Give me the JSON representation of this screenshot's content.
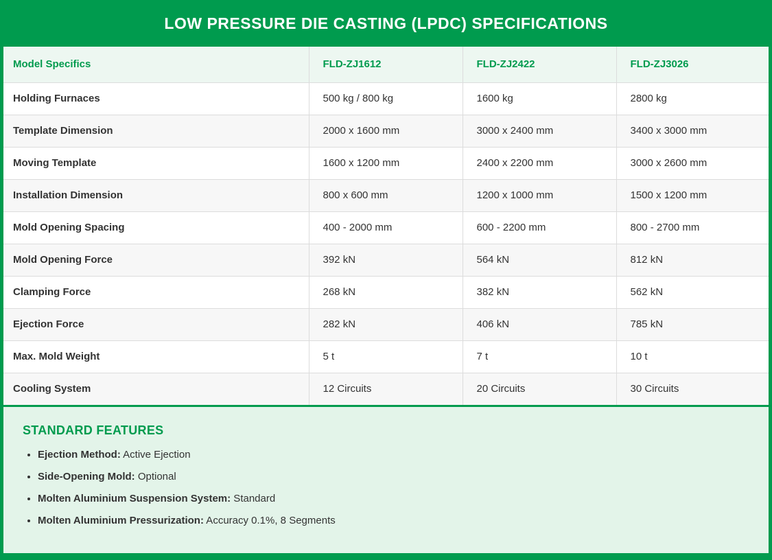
{
  "banner": {
    "title": "LOW PRESSURE DIE CASTING (LPDC) SPECIFICATIONS"
  },
  "table": {
    "columns": [
      "Model Specifics",
      "FLD-ZJ1612",
      "FLD-ZJ2422",
      "FLD-ZJ3026"
    ],
    "rows": [
      {
        "label": "Holding Furnaces",
        "values": [
          "500 kg / 800 kg",
          "1600 kg",
          "2800 kg"
        ]
      },
      {
        "label": "Template Dimension",
        "values": [
          "2000 x 1600 mm",
          "3000 x 2400 mm",
          "3400 x 3000 mm"
        ]
      },
      {
        "label": "Moving Template",
        "values": [
          "1600 x 1200 mm",
          "2400 x 2200 mm",
          "3000 x 2600 mm"
        ]
      },
      {
        "label": "Installation Dimension",
        "values": [
          "800 x 600 mm",
          "1200 x 1000 mm",
          "1500 x 1200 mm"
        ]
      },
      {
        "label": "Mold Opening Spacing",
        "values": [
          "400 - 2000 mm",
          "600 - 2200 mm",
          "800 - 2700 mm"
        ]
      },
      {
        "label": "Mold Opening Force",
        "values": [
          "392 kN",
          "564 kN",
          "812 kN"
        ]
      },
      {
        "label": "Clamping Force",
        "values": [
          "268 kN",
          "382 kN",
          "562 kN"
        ]
      },
      {
        "label": "Ejection Force",
        "values": [
          "282 kN",
          "406 kN",
          "785 kN"
        ]
      },
      {
        "label": "Max. Mold Weight",
        "values": [
          "5 t",
          "7 t",
          "10 t"
        ]
      },
      {
        "label": "Cooling System",
        "values": [
          "12 Circuits",
          "20 Circuits",
          "30 Circuits"
        ]
      }
    ]
  },
  "features": {
    "heading": "STANDARD FEATURES",
    "items": [
      {
        "label": "Ejection Method:",
        "value": " Active Ejection"
      },
      {
        "label": "Side-Opening Mold:",
        "value": " Optional"
      },
      {
        "label": "Molten Aluminium Suspension System:",
        "value": " Standard"
      },
      {
        "label": "Molten Aluminium Pressurization:",
        "value": " Accuracy 0.1%, 8 Segments"
      }
    ]
  },
  "colors": {
    "brand_green": "#009b4e",
    "features_bg": "#e3f4e9",
    "header_row_bg": "#edf7f1",
    "stripe_bg": "#f7f7f7",
    "border_gray": "#dcdcdc",
    "text_dark": "#333333",
    "title_white": "#ffffff"
  }
}
